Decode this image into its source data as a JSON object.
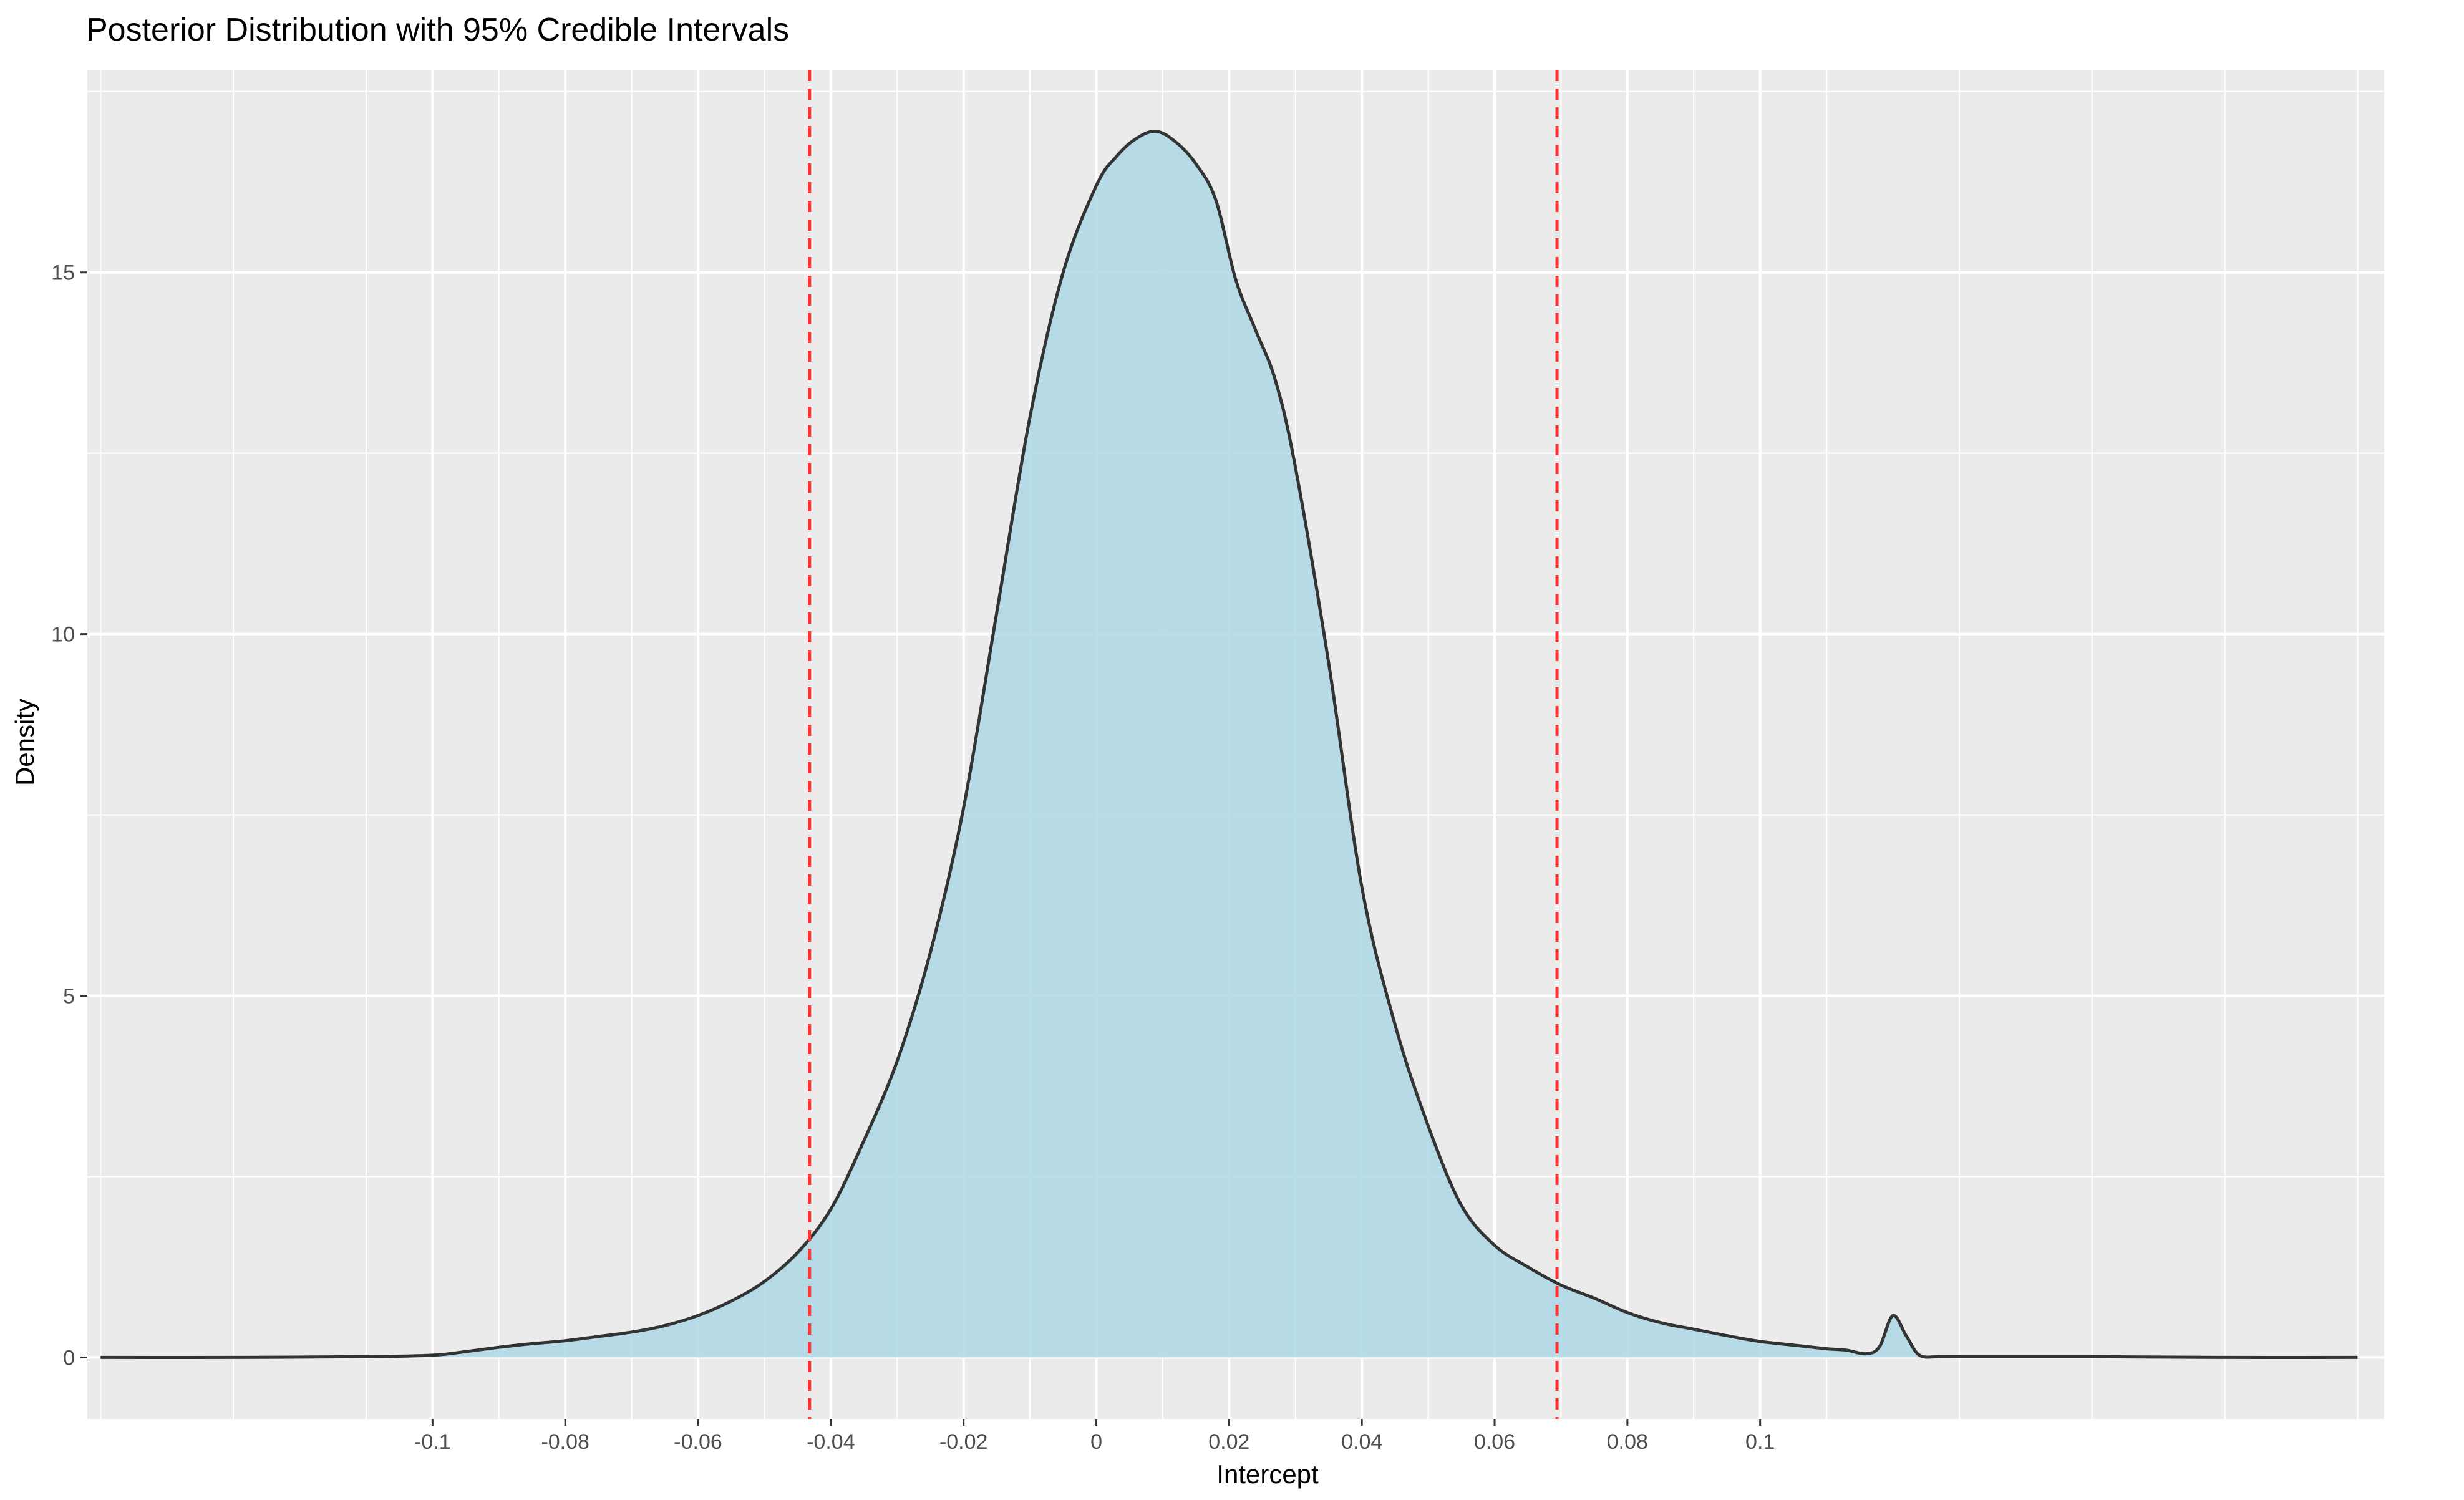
{
  "chart_data": {
    "type": "area",
    "title": "Posterior Distribution with 95% Credible Intervals",
    "xlabel": "Intercept",
    "ylabel": "Density",
    "xlim": [
      -0.152,
      0.194
    ],
    "ylim": [
      -0.85,
      17.8
    ],
    "x_ticks": [
      -0.1,
      -0.08,
      -0.06,
      -0.04,
      -0.02,
      0,
      0.02,
      0.04,
      0.06,
      0.08,
      0.1
    ],
    "x_tick_labels": [
      "-0.1",
      "-0.08",
      "-0.06",
      "-0.04",
      "-0.02",
      "0",
      "0.02",
      "0.04",
      "0.06",
      "0.08",
      "0.1"
    ],
    "y_ticks": [
      0,
      5,
      10,
      15
    ],
    "y_tick_labels": [
      "0",
      "5",
      "10",
      "15"
    ],
    "grid": true,
    "legend": "none",
    "colors": {
      "panel": "#ebebeb",
      "grid": "#ffffff",
      "fill": "#add8e6",
      "line": "#333333",
      "interval": "#ff3333"
    },
    "credible_interval": {
      "lower": -0.0432,
      "upper": 0.0694
    },
    "density": {
      "x": [
        -0.15,
        -0.13,
        -0.11,
        -0.1,
        -0.095,
        -0.09,
        -0.085,
        -0.08,
        -0.075,
        -0.07,
        -0.065,
        -0.06,
        -0.055,
        -0.05,
        -0.045,
        -0.04,
        -0.035,
        -0.03,
        -0.025,
        -0.02,
        -0.015,
        -0.01,
        -0.005,
        0,
        0.003,
        0.006,
        0.009,
        0.012,
        0.015,
        0.018,
        0.021,
        0.024,
        0.027,
        0.03,
        0.035,
        0.04,
        0.045,
        0.05,
        0.055,
        0.06,
        0.065,
        0.07,
        0.075,
        0.08,
        0.085,
        0.09,
        0.095,
        0.1,
        0.105,
        0.11,
        0.113,
        0.116,
        0.118,
        0.12,
        0.122,
        0.124,
        0.127,
        0.13,
        0.15,
        0.17,
        0.19
      ],
      "y": [
        0.0,
        0.0,
        0.01,
        0.03,
        0.08,
        0.14,
        0.19,
        0.23,
        0.29,
        0.35,
        0.44,
        0.58,
        0.78,
        1.05,
        1.45,
        2.05,
        3.0,
        4.1,
        5.6,
        7.6,
        10.3,
        13.0,
        15.0,
        16.2,
        16.6,
        16.85,
        16.95,
        16.8,
        16.5,
        16.0,
        14.9,
        14.2,
        13.5,
        12.3,
        9.6,
        6.5,
        4.6,
        3.2,
        2.1,
        1.55,
        1.25,
        1.0,
        0.82,
        0.62,
        0.48,
        0.39,
        0.3,
        0.22,
        0.17,
        0.12,
        0.1,
        0.05,
        0.15,
        0.58,
        0.3,
        0.03,
        0.01,
        0.01,
        0.01,
        0.0,
        0.0
      ]
    }
  }
}
